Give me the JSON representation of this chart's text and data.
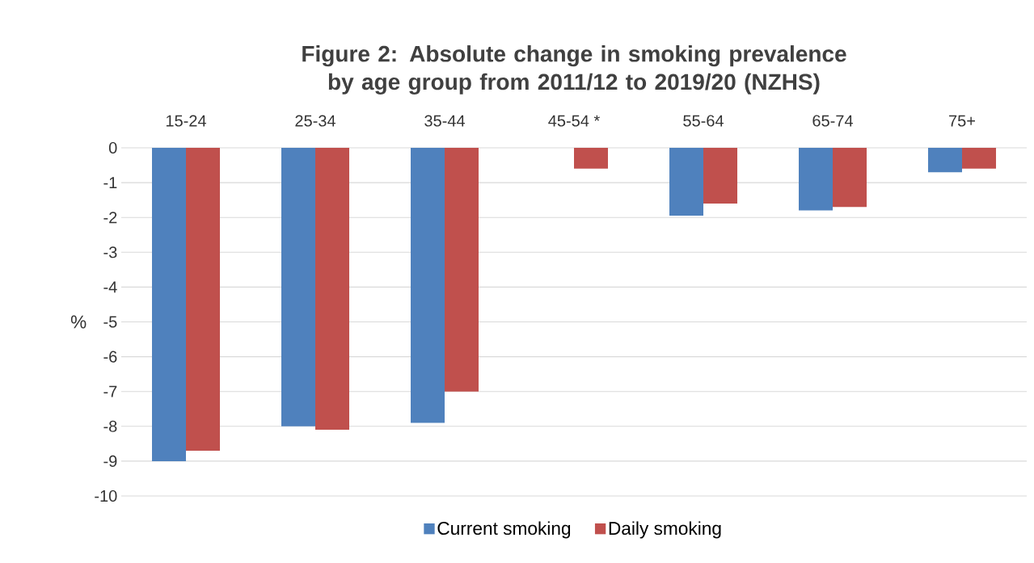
{
  "chart_data": {
    "type": "bar",
    "title": "Figure 2: Absolute change in smoking prevalence by age group from 2011/12 to 2019/20 (NZHS)",
    "ylabel": "%",
    "categories": [
      "15-24",
      "25-34",
      "35-44",
      "45-54 *",
      "55-64",
      "65-74",
      "75+"
    ],
    "series": [
      {
        "name": "Current smoking",
        "color": "#4f81bd",
        "values": [
          -9.0,
          -8.0,
          -7.9,
          null,
          -1.95,
          -1.8,
          -0.7
        ]
      },
      {
        "name": "Daily smoking",
        "color": "#c0504d",
        "values": [
          -8.7,
          -8.1,
          -7.0,
          -0.6,
          -1.6,
          -1.7,
          -0.6
        ]
      }
    ],
    "ylim": [
      -10,
      0
    ],
    "yticks": [
      -10,
      -9,
      -8,
      -7,
      -6,
      -5,
      -4,
      -3,
      -2,
      -1,
      0
    ],
    "grid": "y",
    "legend": "bottom"
  }
}
